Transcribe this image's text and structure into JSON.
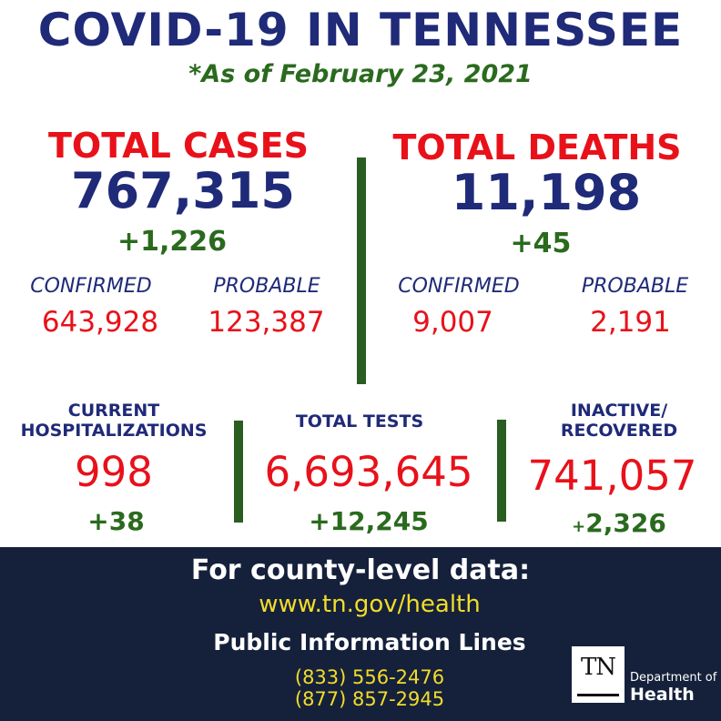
{
  "header": {
    "title": "COVID-19 IN TENNESSEE",
    "subtitle": "*As of February 23, 2021"
  },
  "cases": {
    "label": "TOTAL CASES",
    "total": "767,315",
    "delta": "+1,226",
    "confirmed_label": "CONFIRMED",
    "confirmed_value": "643,928",
    "probable_label": "PROBABLE",
    "probable_value": "123,387"
  },
  "deaths": {
    "label": "TOTAL DEATHS",
    "total": "11,198",
    "delta": "+45",
    "confirmed_label": "CONFIRMED",
    "confirmed_value": "9,007",
    "probable_label": "PROBABLE",
    "probable_value": "2,191"
  },
  "hospitalizations": {
    "label_line1": "CURRENT",
    "label_line2": "HOSPITALIZATIONS",
    "value": "998",
    "delta": "+38"
  },
  "tests": {
    "label": "TOTAL TESTS",
    "value": "6,693,645",
    "delta": "+12,245"
  },
  "recovered": {
    "label_line1": "INACTIVE/",
    "label_line2": "RECOVERED",
    "value": "741,057",
    "delta_sign": "+",
    "delta": "2,326"
  },
  "footer": {
    "heading": "For county-level data:",
    "link": "www.tn.gov/health",
    "sub_heading": "Public Information Lines",
    "phone1": "(833) 556-2476",
    "phone2": "(877) 857-2945"
  },
  "logo": {
    "mark": "TN",
    "dept": "Department of",
    "health": "Health"
  },
  "colors": {
    "navy": "#1f2a78",
    "red": "#e8111a",
    "green": "#2a6a1e",
    "footer_bg": "#15213b",
    "link_yellow": "#f3dc2a"
  }
}
